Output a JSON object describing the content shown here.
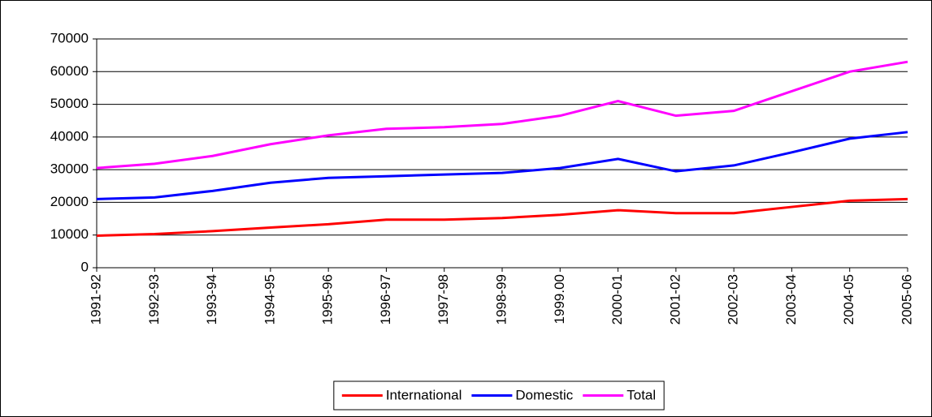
{
  "chart_data": {
    "type": "line",
    "categories": [
      "1991-92",
      "1992-93",
      "1993-94",
      "1994-95",
      "1995-96",
      "1996-97",
      "1997-98",
      "1998-99",
      "1999.00",
      "2000-01",
      "2001-02",
      "2002-03",
      "2003-04",
      "2004-05",
      "2005-06"
    ],
    "series": [
      {
        "name": "International",
        "color": "#ff0000",
        "values": [
          9800,
          10300,
          11200,
          12300,
          13300,
          14700,
          14700,
          15200,
          16200,
          17600,
          16700,
          16700,
          18600,
          20500,
          21000
        ]
      },
      {
        "name": "Domestic",
        "color": "#0000ff",
        "values": [
          21000,
          21500,
          23500,
          26000,
          27500,
          28000,
          28500,
          29000,
          30500,
          33300,
          29500,
          31300,
          35300,
          39500,
          41500
        ]
      },
      {
        "name": "Total",
        "color": "#ff00ff",
        "values": [
          30500,
          31800,
          34200,
          37800,
          40500,
          42500,
          43000,
          44000,
          46500,
          51000,
          46500,
          48000,
          54000,
          60000,
          63000
        ]
      }
    ],
    "ylim": [
      0,
      70000
    ],
    "yticks": [
      0,
      10000,
      20000,
      30000,
      40000,
      50000,
      60000,
      70000
    ],
    "grid": true,
    "legend": "bottom"
  }
}
